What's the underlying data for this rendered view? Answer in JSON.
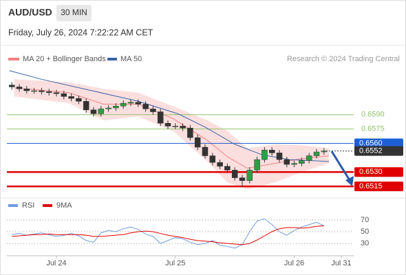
{
  "header": {
    "symbol": "AUD/USD",
    "interval": "30 MIN",
    "timestamp": "Friday, July 26, 2024 7:22:22 AM CET",
    "source": "Research © 2024 Trading Central"
  },
  "chart_data": [
    {
      "type": "candlestick",
      "up_color": "#2e9e45",
      "down_color": "#333333",
      "x": [
        -18,
        -15,
        -12,
        -9,
        -6,
        -3,
        0,
        3,
        6,
        9,
        12,
        15,
        18,
        21,
        24,
        27,
        30,
        33,
        36,
        39,
        42,
        45,
        48,
        51,
        54,
        57,
        60,
        63,
        66,
        69,
        72,
        75,
        78,
        81,
        84,
        87,
        90,
        93,
        96,
        99,
        102,
        105,
        108
      ],
      "open": [
        0.6621,
        0.6619,
        0.6617,
        0.6615,
        0.6615,
        0.6614,
        0.6613,
        0.6612,
        0.6609,
        0.6607,
        0.6604,
        0.6595,
        0.6591,
        0.6596,
        0.6597,
        0.6599,
        0.6602,
        0.6603,
        0.6601,
        0.6596,
        0.6593,
        0.6581,
        0.6578,
        0.6578,
        0.6576,
        0.6566,
        0.6556,
        0.6547,
        0.654,
        0.6536,
        0.6532,
        0.6524,
        0.6521,
        0.6532,
        0.6543,
        0.6553,
        0.655,
        0.6543,
        0.6538,
        0.6539,
        0.6542,
        0.6547,
        0.6551
      ],
      "high": [
        0.6624,
        0.6622,
        0.662,
        0.6618,
        0.6618,
        0.6617,
        0.6616,
        0.6615,
        0.6612,
        0.661,
        0.6607,
        0.6598,
        0.6599,
        0.66,
        0.6602,
        0.6605,
        0.6606,
        0.6606,
        0.6604,
        0.6599,
        0.6596,
        0.6584,
        0.6581,
        0.6581,
        0.6579,
        0.6569,
        0.6559,
        0.655,
        0.6543,
        0.6539,
        0.6535,
        0.6527,
        0.6535,
        0.6546,
        0.6556,
        0.6556,
        0.6553,
        0.6546,
        0.6542,
        0.6545,
        0.655,
        0.6554,
        0.6555
      ],
      "low": [
        0.6616,
        0.6614,
        0.6612,
        0.6612,
        0.6611,
        0.661,
        0.6609,
        0.6606,
        0.6604,
        0.6601,
        0.6592,
        0.6588,
        0.6588,
        0.6593,
        0.6594,
        0.6596,
        0.6599,
        0.6598,
        0.6593,
        0.659,
        0.6578,
        0.6575,
        0.6575,
        0.6573,
        0.6563,
        0.6553,
        0.6544,
        0.6537,
        0.6533,
        0.6529,
        0.6521,
        0.6514,
        0.6518,
        0.6529,
        0.654,
        0.6547,
        0.654,
        0.6535,
        0.6535,
        0.6536,
        0.6539,
        0.6544,
        0.6548
      ],
      "close": [
        0.6619,
        0.6617,
        0.6615,
        0.6615,
        0.6614,
        0.6613,
        0.6612,
        0.6609,
        0.6607,
        0.6604,
        0.6595,
        0.6591,
        0.6596,
        0.6597,
        0.6599,
        0.6602,
        0.6603,
        0.6601,
        0.6596,
        0.6593,
        0.6581,
        0.6578,
        0.6578,
        0.6576,
        0.6566,
        0.6556,
        0.6547,
        0.654,
        0.6536,
        0.6532,
        0.6524,
        0.6521,
        0.6532,
        0.6543,
        0.6553,
        0.655,
        0.6543,
        0.6538,
        0.6539,
        0.6542,
        0.6547,
        0.6551,
        0.6552
      ],
      "xlim": [
        -20,
        120
      ],
      "ylim": [
        0.6505,
        0.6638
      ],
      "bands": {
        "name": "MA 20 + Bollinger Bands",
        "color": "#f08080",
        "x": [
          -17,
          5,
          19,
          33,
          47,
          61,
          69,
          77,
          88,
          99,
          110
        ],
        "upper": [
          0.6627,
          0.6624,
          0.6617,
          0.6613,
          0.6599,
          0.6584,
          0.6573,
          0.6555,
          0.6559,
          0.6558,
          0.6555
        ],
        "middle": [
          0.6618,
          0.6613,
          0.6601,
          0.6601,
          0.6586,
          0.6563,
          0.6546,
          0.6534,
          0.6539,
          0.6544,
          0.6547
        ],
        "lower": [
          0.6609,
          0.6602,
          0.6584,
          0.6588,
          0.6573,
          0.6541,
          0.6519,
          0.6512,
          0.6519,
          0.653,
          0.6539
        ]
      },
      "series": [
        {
          "name": "MA 50",
          "color": "#3a63a8",
          "x": [
            -19,
            -6,
            11,
            33,
            49,
            60,
            72,
            83,
            94,
            110
          ],
          "values": [
            0.6636,
            0.6627,
            0.6617,
            0.6604,
            0.6591,
            0.6577,
            0.6559,
            0.6548,
            0.6543,
            0.6541
          ]
        }
      ],
      "levels": [
        {
          "value": 0.659,
          "label": "0.6590",
          "color": "#8fc46a"
        },
        {
          "value": 0.6575,
          "label": "0.6575",
          "color": "#8fc46a"
        },
        {
          "value": 0.656,
          "label": "0.6560",
          "color": "#1e5fd6"
        },
        {
          "value": 0.6552,
          "label": "0.6552",
          "color": "#333333"
        },
        {
          "value": 0.653,
          "label": "0.6530",
          "color": "#e00000"
        },
        {
          "value": 0.6515,
          "label": "0.6515",
          "color": "#e00000"
        }
      ]
    },
    {
      "type": "line",
      "x": [
        -18,
        -15,
        -12,
        -9,
        -6,
        -3,
        0,
        3,
        6,
        9,
        12,
        15,
        18,
        21,
        24,
        27,
        30,
        33,
        36,
        39,
        42,
        45,
        48,
        51,
        54,
        57,
        60,
        63,
        66,
        69,
        72,
        75,
        78,
        81,
        84,
        87,
        90,
        93,
        96,
        99,
        102,
        105,
        108
      ],
      "series": [
        {
          "name": "RSI",
          "color": "#6e9be0",
          "values": [
            45,
            47,
            44,
            46,
            48,
            45,
            42,
            44,
            47,
            43,
            35,
            32,
            48,
            52,
            50,
            55,
            58,
            54,
            46,
            42,
            30,
            35,
            40,
            38,
            32,
            28,
            30,
            35,
            27,
            25,
            22,
            28,
            50,
            68,
            72,
            62,
            50,
            44,
            52,
            58,
            62,
            66,
            60
          ]
        },
        {
          "name": "9MA",
          "color": "#e00000",
          "values": [
            42,
            43,
            44,
            45,
            45,
            46,
            45,
            45,
            45,
            45,
            44,
            42,
            42,
            43,
            44,
            45,
            48,
            50,
            51,
            50,
            47,
            44,
            42,
            40,
            37,
            35,
            34,
            33,
            31,
            30,
            29,
            28,
            30,
            36,
            43,
            50,
            55,
            57,
            57,
            56,
            57,
            59,
            60
          ]
        }
      ],
      "xlim": [
        -20,
        120
      ],
      "ylim": [
        15,
        85
      ],
      "yticks": [
        30,
        50,
        70
      ],
      "xticks": [
        {
          "value": 0,
          "label": "Jul 24"
        },
        {
          "value": 48,
          "label": "Jul 25"
        },
        {
          "value": 96,
          "label": "Jul 26"
        },
        {
          "value": 115,
          "label": "Jul 31"
        }
      ]
    }
  ]
}
